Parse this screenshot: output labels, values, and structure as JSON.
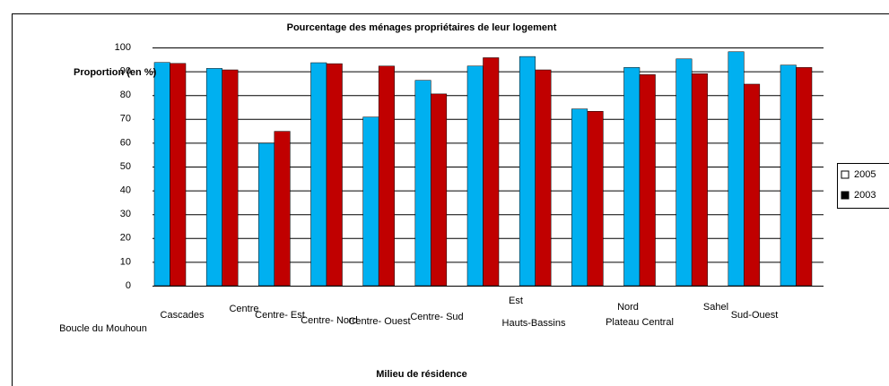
{
  "chart_data": {
    "type": "bar",
    "title": "Pourcentage des ménages propriétaires de leur logement",
    "y_label": "Proportion (en %)",
    "x_label": "Milieu de résidence",
    "categories": [
      "Boucle du Mouhoun",
      "Cascades",
      "Centre",
      "Centre- Est",
      "Centre- Nord",
      "Centre- Ouest",
      "Centre- Sud",
      "Est",
      "Hauts-Bassins",
      "Nord",
      "Plateau Central",
      "Sahel",
      "Sud-Ouest"
    ],
    "series": [
      {
        "name": "2005",
        "color": "#00b0f0",
        "legend_color": "#ffffff",
        "values": [
          93.7,
          91.2,
          59.8,
          93.6,
          70.8,
          86.2,
          92.2,
          96.2,
          74.2,
          91.6,
          95.2,
          98.2,
          92.6
        ]
      },
      {
        "name": "2003",
        "color": "#c00000",
        "legend_color": "#000000",
        "values": [
          93.3,
          90.6,
          64.8,
          93.2,
          92.2,
          80.5,
          95.7,
          90.6,
          73.2,
          88.6,
          89.0,
          84.6,
          91.6
        ]
      }
    ],
    "ylim": [
      0,
      100
    ],
    "yticks": [
      0,
      10,
      20,
      30,
      40,
      50,
      60,
      70,
      80,
      90,
      100
    ],
    "grid": true,
    "legend": "right"
  }
}
